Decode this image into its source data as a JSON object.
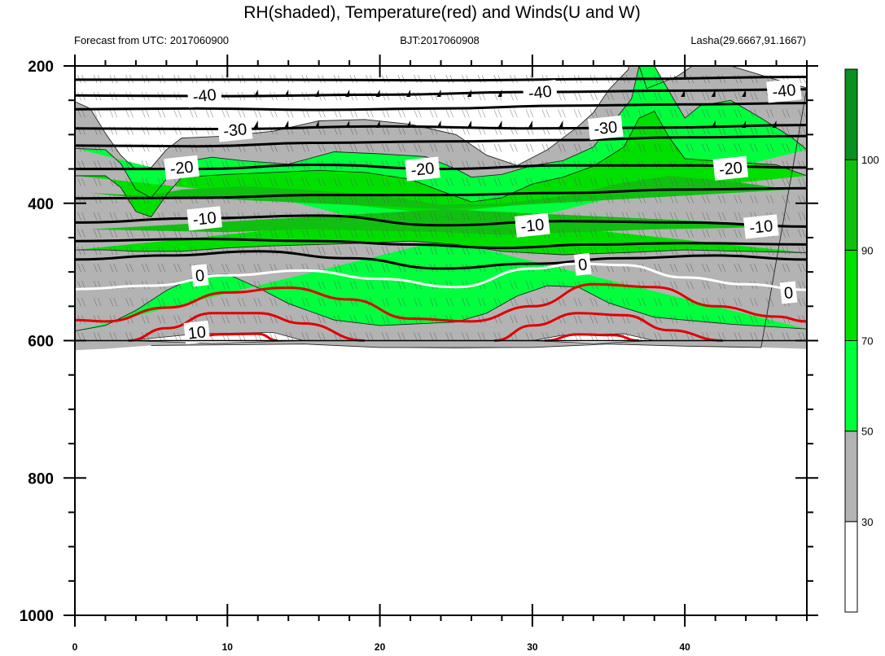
{
  "chart_data": {
    "type": "contour",
    "title": "RH(shaded), Temperature(red) and Winds(U and W)",
    "subtitle_left": "Forecast from UTC: 2017060900",
    "subtitle_center": "BJT:2017060908",
    "subtitle_right": "Lasha(29.6667,91.1667)",
    "xlabel": "",
    "ylabel": "",
    "x_range": [
      0,
      48
    ],
    "y_range": [
      200,
      1000
    ],
    "x_ticks": [
      0,
      10,
      20,
      30,
      40
    ],
    "y_ticks": [
      200,
      400,
      600,
      800,
      1000
    ],
    "colorbar": {
      "levels": [
        30,
        50,
        70,
        90,
        100
      ],
      "colors": [
        "#ffffff",
        "#b3b3b3",
        "#00ff3c",
        "#00e000",
        "#10c010",
        "#0b8f20"
      ]
    },
    "contour_labels": [
      {
        "text": "-40",
        "x": 8.5,
        "y": 243
      },
      {
        "text": "-40",
        "x": 30.5,
        "y": 238
      },
      {
        "text": "-40",
        "x": 46.5,
        "y": 236
      },
      {
        "text": "-30",
        "x": 10.5,
        "y": 293
      },
      {
        "text": "-30",
        "x": 34.8,
        "y": 290
      },
      {
        "text": "-20",
        "x": 7,
        "y": 348
      },
      {
        "text": "-20",
        "x": 22.8,
        "y": 350
      },
      {
        "text": "-20",
        "x": 43,
        "y": 349
      },
      {
        "text": "-10",
        "x": 8.5,
        "y": 422
      },
      {
        "text": "-10",
        "x": 30,
        "y": 432
      },
      {
        "text": "-10",
        "x": 45,
        "y": 434
      },
      {
        "text": "0",
        "x": 8.2,
        "y": 505
      },
      {
        "text": "0",
        "x": 33.3,
        "y": 489
      },
      {
        "text": "0",
        "x": 46.8,
        "y": 530
      },
      {
        "text": "10",
        "x": 8,
        "y": 588
      }
    ]
  }
}
